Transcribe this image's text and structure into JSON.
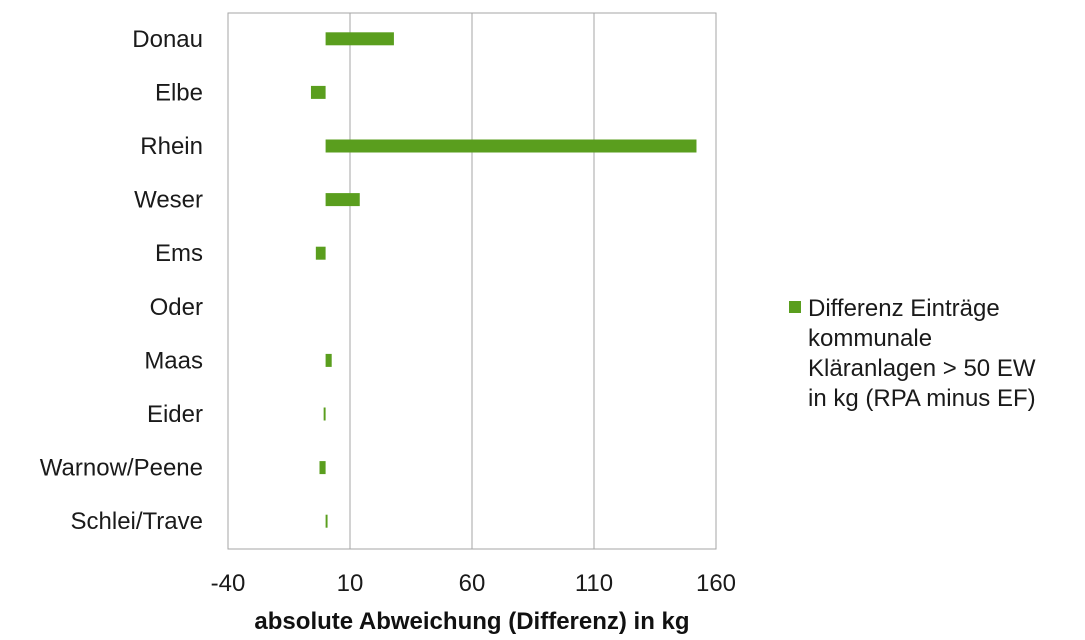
{
  "chart_data": {
    "type": "bar",
    "orientation": "horizontal",
    "categories": [
      "Donau",
      "Elbe",
      "Rhein",
      "Weser",
      "Ems",
      "Oder",
      "Maas",
      "Eider",
      "Warnow/Peene",
      "Schlei/Trave"
    ],
    "series": [
      {
        "name": "Differenz Einträge kommunale Kläranlagen > 50 EW in kg (RPA minus EF)",
        "values": [
          28,
          -6,
          152,
          14,
          -4,
          0,
          2.5,
          -0.8,
          -2.5,
          0.8
        ],
        "color": "#5a9e1e"
      }
    ],
    "title": "",
    "xlabel": "absolute Abweichung (Differenz) in kg",
    "ylabel": "",
    "xlim": [
      -40,
      160
    ],
    "xticks": [
      "-40",
      "10",
      "60",
      "110",
      "160"
    ],
    "grid": "vertical",
    "legend_position": "right",
    "legend_lines": [
      "Differenz Einträge",
      "kommunale",
      "Kläranlagen > 50 EW",
      "in kg (RPA minus EF)"
    ]
  }
}
